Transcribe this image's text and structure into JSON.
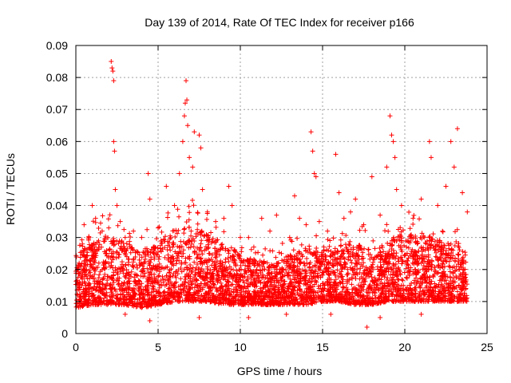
{
  "chart_data": {
    "type": "scatter",
    "title": "Day 139 of 2014, Rate Of TEC Index for receiver p166",
    "xlabel": "GPS time / hours",
    "ylabel": "ROTI / TECUs",
    "xlim": [
      0,
      25
    ],
    "ylim": [
      0,
      0.09
    ],
    "x_ticks": [
      0,
      5,
      10,
      15,
      20,
      25
    ],
    "x_tick_labels": [
      "0",
      "5",
      "10",
      "15",
      "20",
      "25"
    ],
    "y_ticks": [
      0,
      0.01,
      0.02,
      0.03,
      0.04,
      0.05,
      0.06,
      0.07,
      0.08,
      0.09
    ],
    "y_tick_labels": [
      "0",
      "0.01",
      "0.02",
      "0.03",
      "0.04",
      "0.05",
      "0.06",
      "0.07",
      "0.08",
      "0.09"
    ],
    "grid": true,
    "marker": "+",
    "series": [
      {
        "name": "ROTI",
        "color": "#ff0000",
        "points": [
          [
            0.1,
            0.012
          ],
          [
            0.2,
            0.022
          ],
          [
            0.3,
            0.018
          ],
          [
            0.4,
            0.028
          ],
          [
            0.5,
            0.034
          ],
          [
            0.6,
            0.015
          ],
          [
            0.8,
            0.03
          ],
          [
            1.0,
            0.04
          ],
          [
            1.2,
            0.036
          ],
          [
            1.4,
            0.022
          ],
          [
            1.6,
            0.032
          ],
          [
            1.8,
            0.025
          ],
          [
            2.0,
            0.033
          ],
          [
            2.15,
            0.085
          ],
          [
            2.2,
            0.083
          ],
          [
            2.25,
            0.082
          ],
          [
            2.3,
            0.079
          ],
          [
            2.3,
            0.06
          ],
          [
            2.35,
            0.057
          ],
          [
            2.4,
            0.045
          ],
          [
            2.5,
            0.04
          ],
          [
            2.7,
            0.035
          ],
          [
            3.0,
            0.03
          ],
          [
            3.5,
            0.032
          ],
          [
            4.0,
            0.03
          ],
          [
            4.4,
            0.05
          ],
          [
            4.5,
            0.042
          ],
          [
            5.0,
            0.033
          ],
          [
            5.5,
            0.046
          ],
          [
            6.0,
            0.04
          ],
          [
            6.3,
            0.05
          ],
          [
            6.5,
            0.06
          ],
          [
            6.6,
            0.068
          ],
          [
            6.65,
            0.072
          ],
          [
            6.7,
            0.079
          ],
          [
            6.75,
            0.073
          ],
          [
            6.8,
            0.065
          ],
          [
            6.9,
            0.055
          ],
          [
            7.1,
            0.052
          ],
          [
            7.2,
            0.063
          ],
          [
            7.5,
            0.062
          ],
          [
            7.6,
            0.058
          ],
          [
            7.7,
            0.045
          ],
          [
            8.0,
            0.038
          ],
          [
            8.5,
            0.035
          ],
          [
            9.0,
            0.036
          ],
          [
            9.3,
            0.046
          ],
          [
            9.5,
            0.04
          ],
          [
            10.0,
            0.03
          ],
          [
            10.5,
            0.03
          ],
          [
            11.0,
            0.02
          ],
          [
            11.3,
            0.036
          ],
          [
            11.8,
            0.032
          ],
          [
            12.2,
            0.037
          ],
          [
            12.5,
            0.025
          ],
          [
            13.0,
            0.03
          ],
          [
            13.3,
            0.043
          ],
          [
            13.6,
            0.036
          ],
          [
            14.0,
            0.034
          ],
          [
            14.3,
            0.063
          ],
          [
            14.4,
            0.057
          ],
          [
            14.5,
            0.05
          ],
          [
            14.6,
            0.049
          ],
          [
            14.8,
            0.035
          ],
          [
            15.3,
            0.032
          ],
          [
            15.8,
            0.056
          ],
          [
            16.0,
            0.044
          ],
          [
            16.3,
            0.036
          ],
          [
            16.7,
            0.038
          ],
          [
            17.0,
            0.042
          ],
          [
            17.5,
            0.034
          ],
          [
            18.0,
            0.049
          ],
          [
            18.5,
            0.037
          ],
          [
            18.9,
            0.052
          ],
          [
            19.1,
            0.068
          ],
          [
            19.2,
            0.062
          ],
          [
            19.3,
            0.06
          ],
          [
            19.4,
            0.055
          ],
          [
            19.5,
            0.045
          ],
          [
            19.8,
            0.04
          ],
          [
            20.5,
            0.036
          ],
          [
            21.0,
            0.042
          ],
          [
            21.5,
            0.06
          ],
          [
            21.6,
            0.055
          ],
          [
            22.0,
            0.04
          ],
          [
            22.5,
            0.046
          ],
          [
            22.8,
            0.06
          ],
          [
            23.0,
            0.052
          ],
          [
            23.2,
            0.064
          ],
          [
            23.5,
            0.044
          ],
          [
            23.8,
            0.038
          ],
          [
            17.7,
            0.002
          ],
          [
            4.5,
            0.004
          ],
          [
            10.5,
            0.005
          ],
          [
            12.8,
            0.006
          ],
          [
            18.5,
            0.005
          ],
          [
            21.0,
            0.006
          ],
          [
            7.5,
            0.005
          ],
          [
            3.0,
            0.006
          ],
          [
            15.5,
            0.006
          ]
        ],
        "dense_band": {
          "description_free": true,
          "x_range": [
            0,
            23.8
          ],
          "envelope": [
            [
              0,
              0.004,
              0.03
            ],
            [
              1,
              0.005,
              0.035
            ],
            [
              2,
              0.005,
              0.038
            ],
            [
              3,
              0.005,
              0.035
            ],
            [
              4,
              0.004,
              0.032
            ],
            [
              5,
              0.005,
              0.035
            ],
            [
              6,
              0.006,
              0.04
            ],
            [
              7,
              0.006,
              0.042
            ],
            [
              8,
              0.006,
              0.038
            ],
            [
              9,
              0.005,
              0.035
            ],
            [
              10,
              0.005,
              0.03
            ],
            [
              11,
              0.005,
              0.028
            ],
            [
              12,
              0.005,
              0.026
            ],
            [
              13,
              0.005,
              0.03
            ],
            [
              14,
              0.005,
              0.032
            ],
            [
              15,
              0.006,
              0.033
            ],
            [
              16,
              0.006,
              0.034
            ],
            [
              17,
              0.005,
              0.034
            ],
            [
              18,
              0.005,
              0.033
            ],
            [
              19,
              0.006,
              0.036
            ],
            [
              20,
              0.006,
              0.038
            ],
            [
              21,
              0.006,
              0.038
            ],
            [
              22,
              0.006,
              0.036
            ],
            [
              23,
              0.006,
              0.034
            ],
            [
              23.8,
              0.006,
              0.03
            ]
          ]
        }
      }
    ]
  }
}
